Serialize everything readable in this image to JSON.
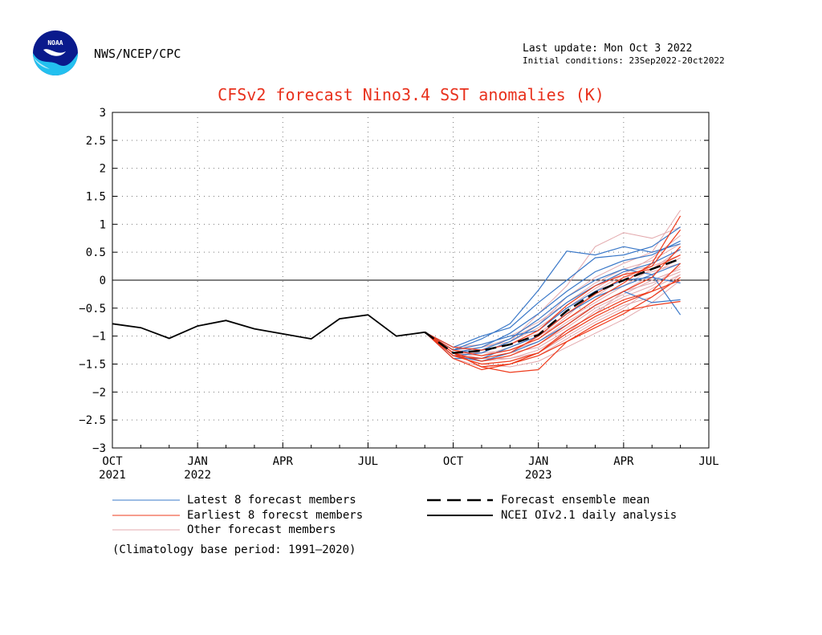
{
  "header": {
    "agency": "NWS/NCEP/CPC",
    "last_update": "Last update: Mon Oct 3 2022",
    "initial_conditions": "Initial conditions: 23Sep2022-20ct2022",
    "logo_text": "NOAA"
  },
  "colors": {
    "title": "#e8311d",
    "latest": "#3a78c8",
    "earliest": "#ee3b1c",
    "other": "#e3a9ad",
    "mean": "#000000",
    "analysis": "#000000"
  },
  "chart_data": {
    "type": "line",
    "title": "CFSv2 forecast Nino3.4 SST anomalies (K)",
    "xlabel": "",
    "ylabel": "",
    "x_range": [
      "2021-10",
      "2023-07"
    ],
    "ylim": [
      -3,
      3
    ],
    "grid": true,
    "zero_line": true,
    "x_ticks": [
      {
        "month": 0,
        "label": "OCT",
        "year": "2021"
      },
      {
        "month": 3,
        "label": "JAN",
        "year": "2022"
      },
      {
        "month": 6,
        "label": "APR",
        "year": ""
      },
      {
        "month": 9,
        "label": "JUL",
        "year": ""
      },
      {
        "month": 12,
        "label": "OCT",
        "year": ""
      },
      {
        "month": 15,
        "label": "JAN",
        "year": "2023"
      },
      {
        "month": 18,
        "label": "APR",
        "year": ""
      },
      {
        "month": 21,
        "label": "JUL",
        "year": ""
      }
    ],
    "y_ticks": [
      "3",
      "2.5",
      "2",
      "1.5",
      "1",
      "0.5",
      "0",
      "−0.5",
      "−1",
      "−1.5",
      "−2",
      "−2.5",
      "−3"
    ],
    "analysis": {
      "name": "NCEI OIv2.1 daily analysis",
      "x": [
        "2021-10",
        "2021-11",
        "2021-12",
        "2022-01",
        "2022-02",
        "2022-03",
        "2022-04",
        "2022-05",
        "2022-06",
        "2022-07",
        "2022-08",
        "2022-09"
      ],
      "y": [
        -0.78,
        -0.85,
        -1.04,
        -0.82,
        -0.72,
        -0.87,
        -0.96,
        -1.05,
        -0.69,
        -0.62,
        -1.0,
        -0.93
      ]
    },
    "forecast_x": [
      "2022-09",
      "2022-10",
      "2022-11",
      "2022-12",
      "2023-01",
      "2023-02",
      "2023-03",
      "2023-04",
      "2023-05",
      "2023-06"
    ],
    "ensemble_mean": {
      "name": "Forecast ensemble mean",
      "y": [
        -0.93,
        -1.3,
        -1.26,
        -1.15,
        -0.98,
        -0.55,
        -0.22,
        0.0,
        0.2,
        0.38
      ]
    },
    "latest_members": {
      "name": "Latest 8 forecast members",
      "series": [
        [
          -0.93,
          -1.25,
          -1.05,
          -0.78,
          -0.18,
          0.52,
          0.45,
          0.6,
          0.5,
          0.65
        ],
        [
          -0.93,
          -1.2,
          -1.0,
          -0.85,
          -0.4,
          0.0,
          0.4,
          0.45,
          0.6,
          0.95
        ],
        [
          -0.93,
          -1.3,
          -1.2,
          -0.95,
          -0.6,
          -0.2,
          0.15,
          0.35,
          0.45,
          0.7
        ],
        [
          -0.93,
          -1.35,
          -1.3,
          -1.1,
          -0.8,
          -0.4,
          -0.1,
          0.15,
          0.3,
          0.55
        ],
        [
          -0.93,
          -1.3,
          -1.25,
          -1.05,
          -0.7,
          -0.3,
          0.0,
          0.2,
          0.1,
          -0.62
        ],
        [
          -0.93,
          -1.4,
          -1.4,
          -1.2,
          -1.0,
          -0.6,
          -0.3,
          -0.1,
          0.1,
          0.3
        ],
        [
          -0.93,
          -1.25,
          -1.15,
          -1.0,
          -0.9,
          -0.5,
          -0.2,
          0.0,
          0.05,
          -0.05
        ],
        [
          -0.93,
          -1.35,
          -1.45,
          -1.3,
          -1.1,
          -0.8,
          -0.45,
          -0.2,
          -0.4,
          -0.35
        ]
      ]
    },
    "earliest_members": {
      "name": "Earliest 8 forecst members",
      "series": [
        [
          -0.93,
          -1.3,
          -1.55,
          -1.65,
          -1.6,
          -1.1,
          -0.8,
          -0.55,
          -0.45,
          -0.38
        ],
        [
          -0.93,
          -1.35,
          -1.5,
          -1.45,
          -1.3,
          -0.9,
          -0.6,
          -0.35,
          -0.2,
          0.3
        ],
        [
          -0.93,
          -1.25,
          -1.35,
          -1.25,
          -1.05,
          -0.7,
          -0.35,
          -0.05,
          0.3,
          1.15
        ],
        [
          -0.93,
          -1.3,
          -1.45,
          -1.35,
          -1.15,
          -0.8,
          -0.45,
          -0.2,
          0.05,
          0.6
        ],
        [
          -0.93,
          -1.4,
          -1.6,
          -1.5,
          -1.3,
          -0.95,
          -0.65,
          -0.4,
          -0.2,
          0.0
        ],
        [
          -0.93,
          -1.35,
          -1.4,
          -1.3,
          -1.0,
          -0.6,
          -0.25,
          0.05,
          0.25,
          0.9
        ],
        [
          -0.93,
          -1.2,
          -1.25,
          -1.15,
          -0.9,
          -0.45,
          -0.1,
          0.1,
          0.2,
          0.45
        ],
        [
          -0.93,
          -1.3,
          -1.55,
          -1.5,
          -1.35,
          -1.1,
          -0.85,
          -0.6,
          -0.3,
          0.05
        ]
      ]
    },
    "other_members": {
      "name": "Other forecast members",
      "series": [
        [
          -0.93,
          -1.3,
          -1.3,
          -1.1,
          -0.6,
          -0.1,
          0.6,
          0.85,
          0.75,
          0.95
        ],
        [
          -0.93,
          -1.35,
          -1.45,
          -1.4,
          -1.3,
          -1.0,
          -0.7,
          -0.45,
          -0.3,
          0.1
        ],
        [
          -0.93,
          -1.25,
          -1.2,
          -1.05,
          -0.8,
          -0.3,
          0.05,
          0.3,
          0.5,
          1.25
        ],
        [
          -0.93,
          -1.3,
          -1.4,
          -1.3,
          -1.2,
          -0.9,
          -0.6,
          -0.2,
          0.1,
          0.4
        ],
        [
          -0.93,
          -1.35,
          -1.5,
          -1.55,
          -1.45,
          -1.2,
          -0.95,
          -0.7,
          -0.4,
          0.0
        ],
        [
          -0.93,
          -1.3,
          -1.35,
          -1.2,
          -1.0,
          -0.7,
          -0.4,
          -0.1,
          0.2,
          0.55
        ],
        [
          -0.93,
          -1.2,
          -1.15,
          -1.0,
          -0.75,
          -0.4,
          -0.05,
          0.2,
          0.35,
          0.65
        ],
        [
          -0.93,
          -1.35,
          -1.45,
          -1.35,
          -1.15,
          -0.85,
          -0.5,
          -0.25,
          0.0,
          0.2
        ],
        [
          -0.93,
          -1.3,
          -1.25,
          -1.15,
          -0.95,
          -0.6,
          -0.3,
          0.05,
          0.15,
          0.3
        ],
        [
          -0.93,
          -1.4,
          -1.55,
          -1.5,
          -1.35,
          -1.05,
          -0.75,
          -0.5,
          -0.15,
          0.1
        ],
        [
          -0.93,
          -1.25,
          -1.3,
          -1.25,
          -1.1,
          -0.75,
          -0.45,
          -0.2,
          -0.05,
          0.15
        ],
        [
          -0.93,
          -1.3,
          -1.35,
          -1.25,
          -1.05,
          -0.65,
          -0.2,
          0.1,
          0.4,
          0.8
        ],
        [
          -0.93,
          -1.35,
          -1.4,
          -1.4,
          -1.25,
          -0.95,
          -0.55,
          -0.3,
          -0.1,
          0.25
        ],
        [
          -0.93,
          -1.3,
          -1.2,
          -1.1,
          -0.85,
          -0.5,
          -0.15,
          0.15,
          0.25,
          0.45
        ]
      ]
    },
    "footnote": "(Climatology base period: 1991—2020)"
  },
  "legend": {
    "latest": "Latest 8 forecast members",
    "earliest": "Earliest 8 forecst members",
    "other": "Other forecast members",
    "mean": "Forecast ensemble mean",
    "analysis": "NCEI OIv2.1 daily analysis"
  }
}
